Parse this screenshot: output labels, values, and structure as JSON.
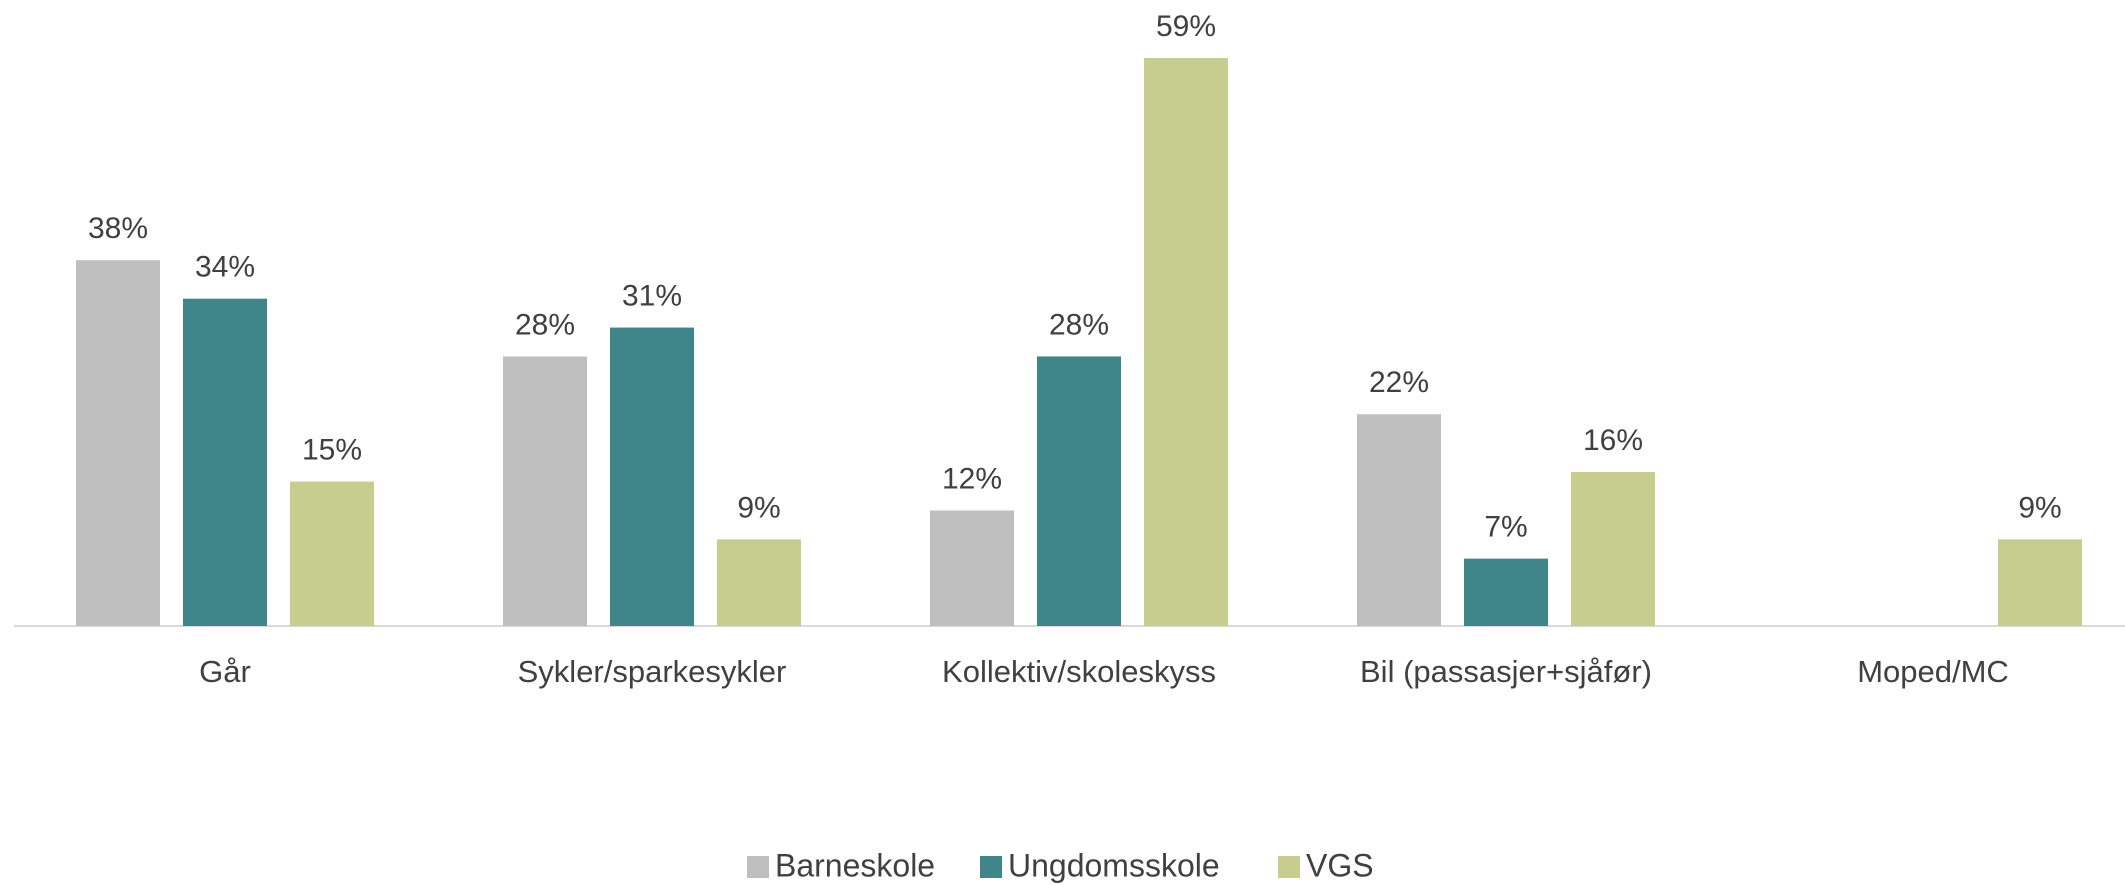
{
  "chart_data": {
    "type": "bar",
    "categories": [
      "Går",
      "Sykler/sparkesykler",
      "Kollektiv/skoleskyss",
      "Bil (passasjer+sjåfør)",
      "Moped/MC"
    ],
    "series": [
      {
        "name": "Barneskole",
        "color": "#bfbfbf",
        "values": [
          38,
          28,
          12,
          22,
          null
        ],
        "value_labels": [
          "38%",
          "28%",
          "12%",
          "22%",
          null
        ]
      },
      {
        "name": "Ungdomsskole",
        "color": "#3f868b",
        "values": [
          34,
          31,
          28,
          7,
          null
        ],
        "value_labels": [
          "34%",
          "31%",
          "28%",
          "7%",
          null
        ]
      },
      {
        "name": "VGS",
        "color": "#c6cd8e",
        "values": [
          15,
          9,
          59,
          16,
          9
        ],
        "value_labels": [
          "15%",
          "9%",
          "59%",
          "16%",
          "9%"
        ]
      }
    ],
    "legend": "bottom"
  }
}
